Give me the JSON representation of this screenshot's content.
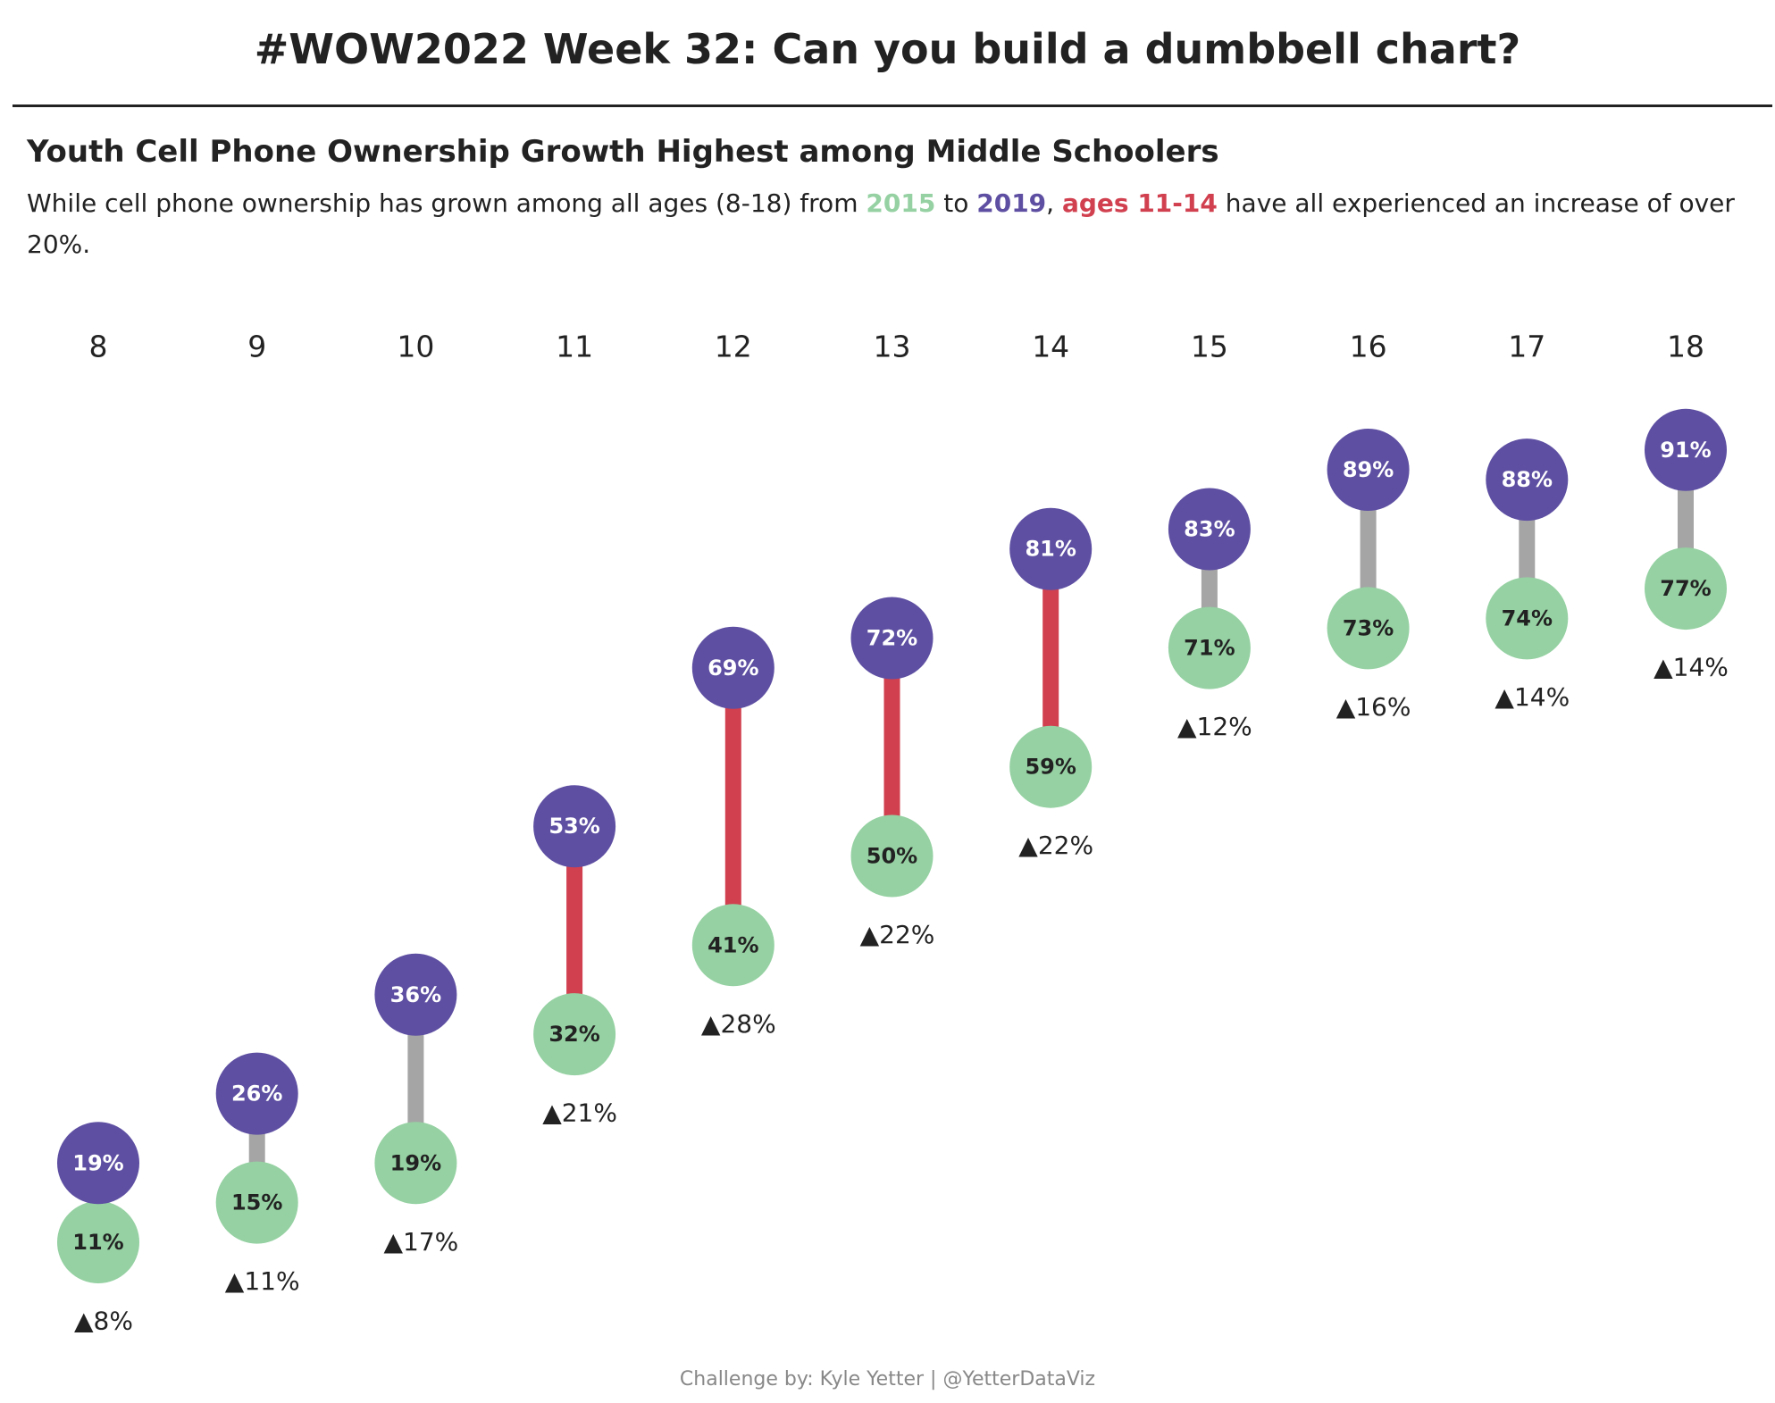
{
  "header": {
    "title": "#WOW2022 Week 32: Can you build a dumbbell chart?"
  },
  "chart_data": {
    "type": "dumbbell",
    "title": "Youth Cell Phone Ownership Growth Highest among Middle Schoolers",
    "subtitle_parts": [
      "While cell phone ownership has grown among all ages (8-18) from ",
      " to ",
      ", ",
      "ages 11-14",
      " have all experienced an increase of over 20%."
    ],
    "highlight_color": "#d1404f",
    "categories": [
      "8",
      "9",
      "10",
      "11",
      "12",
      "13",
      "14",
      "15",
      "16",
      "17",
      "18"
    ],
    "ylim": [
      0,
      100
    ],
    "series": [
      {
        "name": "2015",
        "color": "#95d1a2",
        "values": [
          11,
          15,
          19,
          32,
          41,
          50,
          59,
          71,
          73,
          74,
          77
        ],
        "value_labels": [
          "11%",
          "15%",
          "19%",
          "32%",
          "41%",
          "50%",
          "59%",
          "71%",
          "73%",
          "74%",
          "77%"
        ]
      },
      {
        "name": "2019",
        "color": "#5e4fa2",
        "values": [
          19,
          26,
          36,
          53,
          69,
          72,
          81,
          83,
          89,
          88,
          91
        ],
        "value_labels": [
          "19%",
          "26%",
          "36%",
          "53%",
          "69%",
          "72%",
          "81%",
          "83%",
          "89%",
          "88%",
          "91%"
        ]
      }
    ],
    "change": {
      "values": [
        8,
        11,
        17,
        21,
        28,
        22,
        22,
        12,
        16,
        14,
        14
      ],
      "value_labels": [
        "▲8%",
        "▲11%",
        "▲17%",
        "▲21%",
        "▲28%",
        "▲22%",
        "▲22%",
        "▲12%",
        "▲16%",
        "▲14%",
        "▲14%"
      ]
    },
    "connector_colors": [
      "#a5a5a5",
      "#a5a5a5",
      "#a5a5a5",
      "#d1404f",
      "#d1404f",
      "#d1404f",
      "#d1404f",
      "#a5a5a5",
      "#a5a5a5",
      "#a5a5a5",
      "#a5a5a5"
    ]
  },
  "footer": "Challenge by: Kyle Yetter | @YetterDataViz"
}
